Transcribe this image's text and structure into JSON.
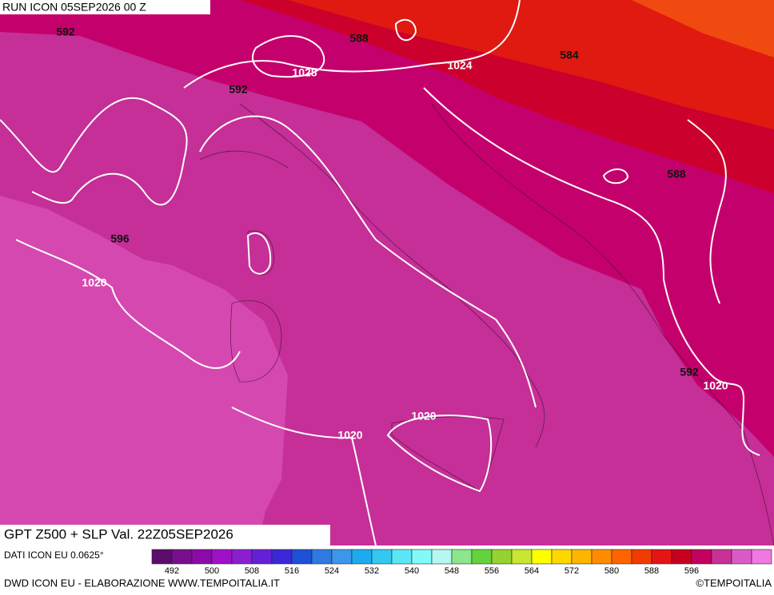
{
  "header": {
    "run": "RUN ICON 05SEP2026 00 Z"
  },
  "map": {
    "labels": [
      "592",
      "588",
      "1028",
      "1024",
      "584",
      "592",
      "588",
      "596",
      "1020",
      "592",
      "1020",
      "1020",
      "1020"
    ]
  },
  "footer": {
    "product": "GPT Z500 + SLP Val. 22Z05SEP2026",
    "source": "DATI ICON EU 0.0625°",
    "credit": "DWD ICON EU - ELABORAZIONE WWW.TEMPOITALIA.IT",
    "copyright": "©TEMPOITALIA"
  },
  "colorbar": {
    "labels": [
      492,
      500,
      508,
      516,
      524,
      532,
      540,
      548,
      556,
      564,
      572,
      580,
      588,
      596
    ],
    "colors": [
      "#5c0d6b",
      "#780f8c",
      "#8c0aa8",
      "#a010c8",
      "#8c1ed2",
      "#6420d6",
      "#3c28d8",
      "#1e50d8",
      "#2f7ae0",
      "#3c96ec",
      "#1eaaf0",
      "#32c8f0",
      "#5ae6f5",
      "#82fafa",
      "#b4f8f0",
      "#8ce68c",
      "#64d23c",
      "#96d232",
      "#c8e632",
      "#ffff00",
      "#ffd700",
      "#ffb400",
      "#ff8c00",
      "#ff6400",
      "#f03c00",
      "#e61414",
      "#c8001e",
      "#c40060",
      "#c83296",
      "#dc5ac8",
      "#f078e0"
    ]
  }
}
